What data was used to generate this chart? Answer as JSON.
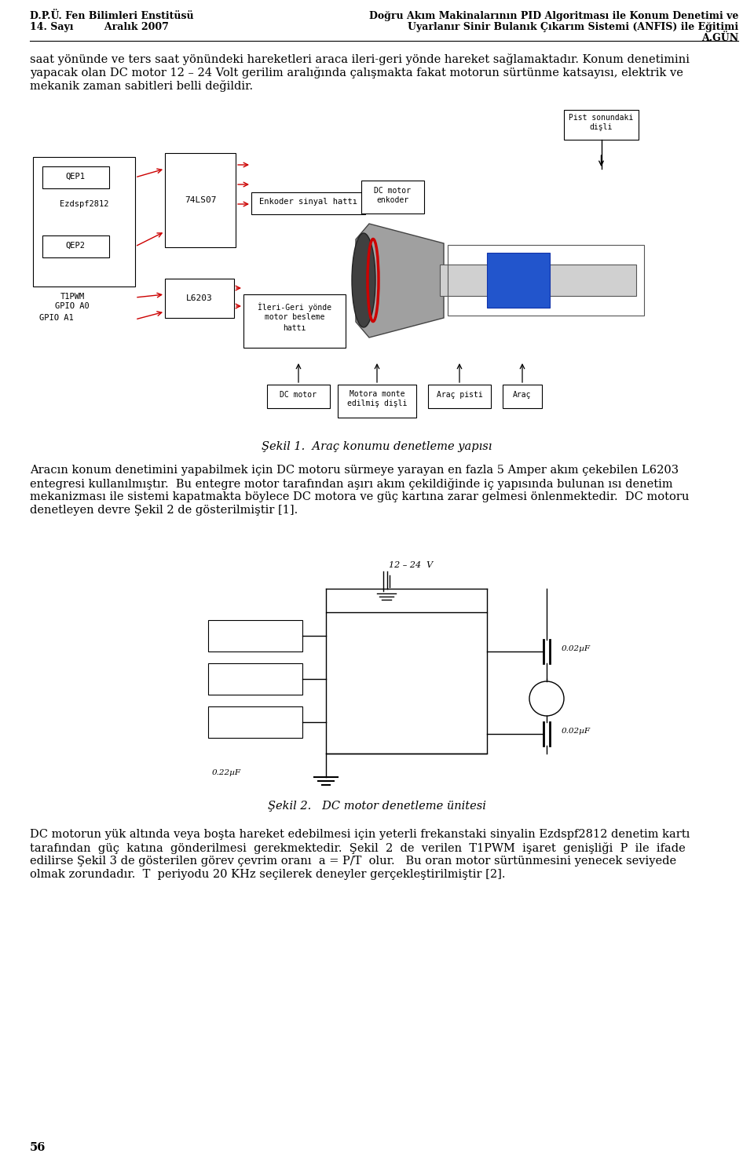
{
  "page_width": 9.6,
  "page_height": 14.74,
  "dpi": 100,
  "bg_color": "#ffffff",
  "header_left_line1": "D.P.Ü. Fen Bilimleri Enstitüsü",
  "header_left_line2": "14. Sayı         Aralık 2007",
  "header_right_line1": "Doğru Akım Makinalarının PID Algoritması ile Konum Denetimi ve",
  "header_right_line2": "Uyarlanır Sinir Bulanık Çıkarım Sistemi (ANFIS) ile Eğitimi",
  "header_right_line3": "A.GÜN",
  "header_font_size": 9,
  "body_font_size": 10.5,
  "caption_font_size": 10.5,
  "small_font_size": 7.5,
  "para1_line1": "saat yönünde ve ters saat yönündeki hareketleri araca ileri-geri yönde hareket sağlamaktadır. Konum denetimini",
  "para1_line2": "yapacak olan DC motor 12 – 24 Volt gerilim aralığında çalışmakta fakat motorun sürtünme katsayısı, elektrik ve",
  "para1_line3": "mekanik zaman sabitleri belli değildir.",
  "fig1_caption": "Şekil 1.  Araç konumu denetleme yapısı",
  "para2_line1": "Aracın konum denetimini yapabilmek için DC motoru sürmeye yarayan en fazla 5 Amper akım çekebilen L6203",
  "para2_line2": "entegresi kullanılmıştır.  Bu entegre motor tarafından aşırı akım çekildiğinde iç yapısında bulunan ısı denetim",
  "para2_line3": "mekanizması ile sistemi kapatmakta böylece DC motora ve güç kartına zarar gelmesi önlenmektedir.  DC motoru",
  "para2_line4": "denetleyen devre Şekil 2 de gösterilmiştir [1].",
  "fig2_caption": "Şekil 2.   DC motor denetleme ünitesi",
  "para3_line1": "DC motorun yük altında veya boşta hareket edebilmesi için yeterli frekanstaki sinyalin Ezdspf2812 denetim kartı",
  "para3_line2": "tarafından  güç  katına  gönderilmesi  gerekmektedir.  Şekil  2  de  verilen  T1PWM  işaret  genişliği  P  ile  ifade",
  "para3_line3": "edilirse Şekil 3 de gösterilen görev çevrim oranı  a = P/T  olur.   Bu oran motor sürtünmesini yenecek seviyede",
  "para3_line4": "olmak zorundadır.  T  periyodu 20 KHz seçilerek deneyler gerçekleştirilmiştir [2].",
  "page_number": "56",
  "text_color": "#000000",
  "red_color": "#cc0000"
}
